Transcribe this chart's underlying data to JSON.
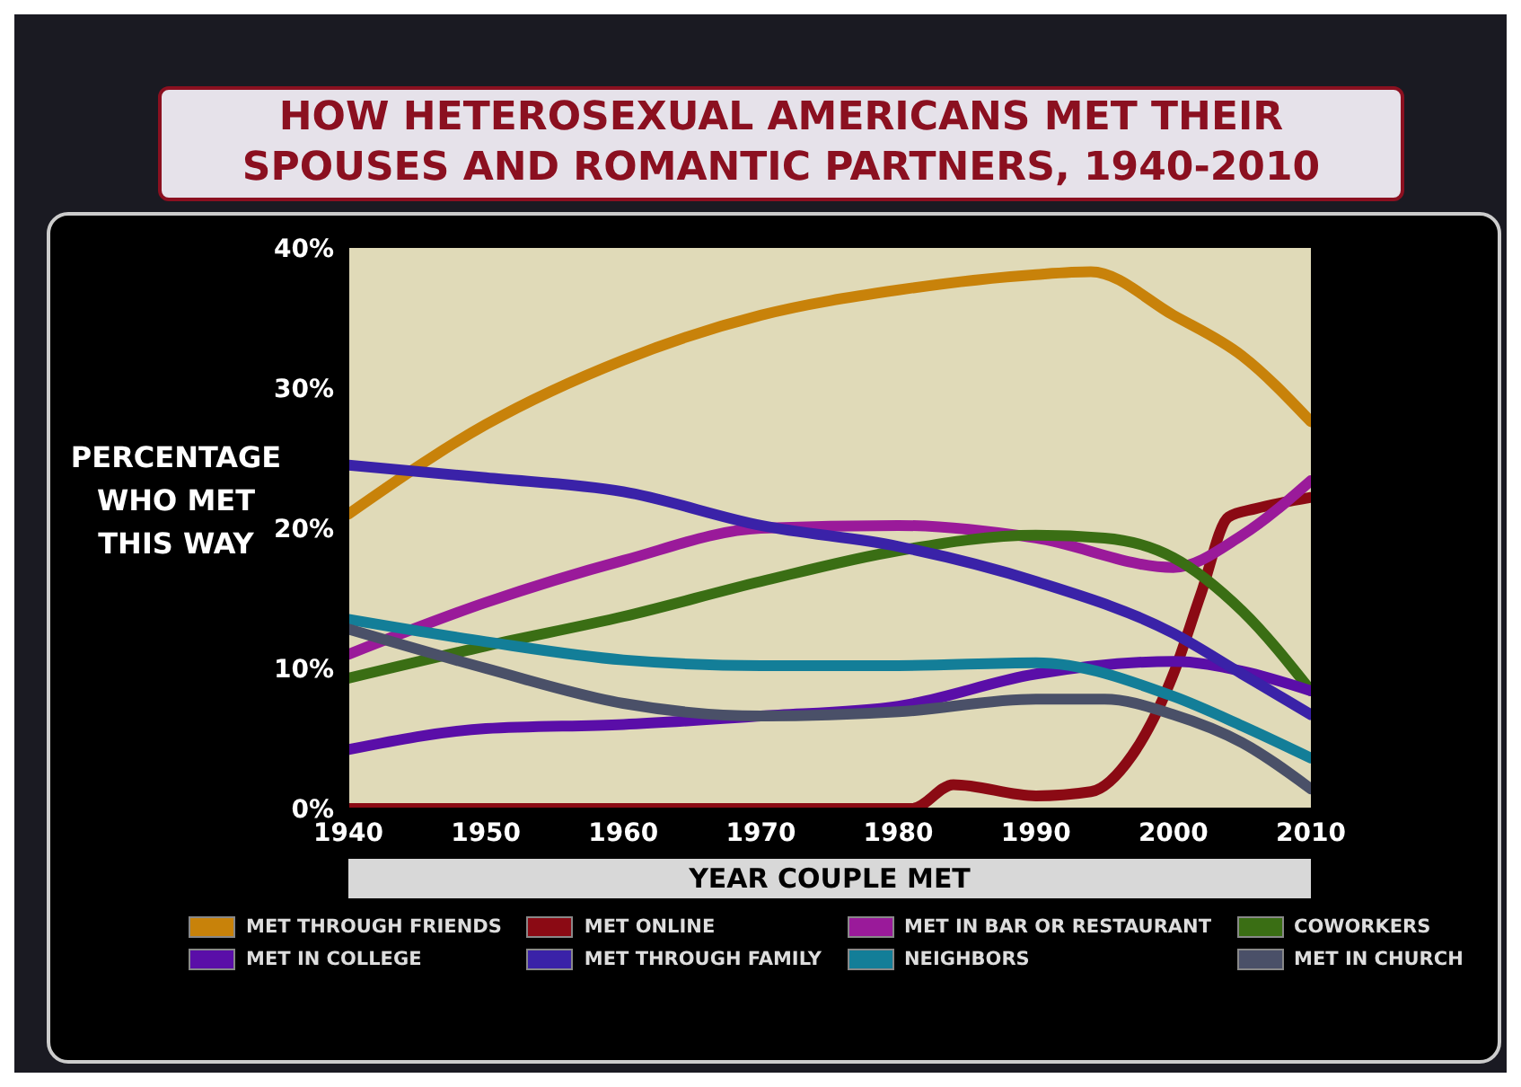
{
  "chart_data": {
    "type": "line",
    "title": "HOW HETEROSEXUAL AMERICANS MET THEIR SPOUSES AND ROMANTIC PARTNERS, 1940-2010",
    "xlabel": "YEAR COUPLE MET",
    "ylabel": "PERCENTAGE WHO MET THIS WAY",
    "xlim": [
      1940,
      2010
    ],
    "xticks": [
      1940,
      1950,
      1960,
      1970,
      1980,
      1990,
      2000,
      2010
    ],
    "ylim": [
      0,
      40
    ],
    "yticks": [
      {
        "value": 0,
        "label": "0%"
      },
      {
        "value": 10,
        "label": "10%"
      },
      {
        "value": 20,
        "label": "20%"
      },
      {
        "value": 30,
        "label": "30%"
      },
      {
        "value": 40,
        "label": "40%"
      }
    ],
    "grid": false,
    "legend": "bottom",
    "marker": "none",
    "line_style": "solid",
    "series": [
      {
        "name": "MET THROUGH FRIENDS",
        "color": "#c8820a",
        "x": [
          1940,
          1950,
          1960,
          1970,
          1980,
          1990,
          1994,
          2000,
          2005,
          2010
        ],
        "values": [
          21,
          27.4,
          32,
          35.2,
          37,
          38.1,
          38.3,
          35.2,
          32.3,
          27.6
        ]
      },
      {
        "name": "MET ONLINE",
        "color": "#8b0a14",
        "x": [
          1940,
          1960,
          1981,
          1984,
          1990,
          1994,
          1997,
          2000,
          2002,
          2004,
          2006,
          2010
        ],
        "values": [
          0,
          0,
          0,
          1.7,
          0.9,
          1.2,
          3.8,
          9.6,
          15.3,
          20.8,
          21.4,
          22.2
        ]
      },
      {
        "name": "MET IN BAR OR RESTAURANT",
        "color": "#9a1a9a",
        "x": [
          1940,
          1950,
          1960,
          1970,
          1980,
          1990,
          2000,
          2005,
          2010
        ],
        "values": [
          11,
          14.7,
          17.7,
          20,
          20.2,
          19.3,
          17.2,
          19.5,
          23.4
        ]
      },
      {
        "name": "COWORKERS",
        "color": "#3a6e14",
        "x": [
          1940,
          1950,
          1960,
          1970,
          1980,
          1990,
          1995,
          2000,
          2005,
          2010
        ],
        "values": [
          9.3,
          11.6,
          13.7,
          16.2,
          18.4,
          19.5,
          19.3,
          17.9,
          14.1,
          8.4
        ]
      },
      {
        "name": "MET IN COLLEGE",
        "color": "#5a0ea8",
        "x": [
          1940,
          1950,
          1960,
          1970,
          1980,
          1990,
          2000,
          2005,
          2010
        ],
        "values": [
          4.2,
          5.7,
          6,
          6.6,
          7.3,
          9.6,
          10.5,
          9.8,
          8.4
        ]
      },
      {
        "name": "MET THROUGH FAMILY",
        "color": "#3a22a8",
        "x": [
          1940,
          1950,
          1960,
          1970,
          1980,
          1990,
          2000,
          2005,
          2010
        ],
        "values": [
          24.5,
          23.6,
          22.6,
          20.2,
          18.7,
          16.2,
          12.5,
          9.6,
          6.7
        ]
      },
      {
        "name": "NEIGHBORS",
        "color": "#137e98",
        "x": [
          1940,
          1950,
          1960,
          1970,
          1980,
          1990,
          2000,
          2005,
          2010
        ],
        "values": [
          13.5,
          11.9,
          10.6,
          10.2,
          10.2,
          10.4,
          8,
          5.9,
          3.6
        ]
      },
      {
        "name": "MET IN CHURCH",
        "color": "#4a5068",
        "x": [
          1940,
          1950,
          1960,
          1970,
          1980,
          1990,
          1995,
          2000,
          2005,
          2010
        ],
        "values": [
          12.8,
          10,
          7.5,
          6.6,
          6.9,
          7.8,
          7.8,
          6.7,
          4.7,
          1.4
        ]
      }
    ]
  }
}
